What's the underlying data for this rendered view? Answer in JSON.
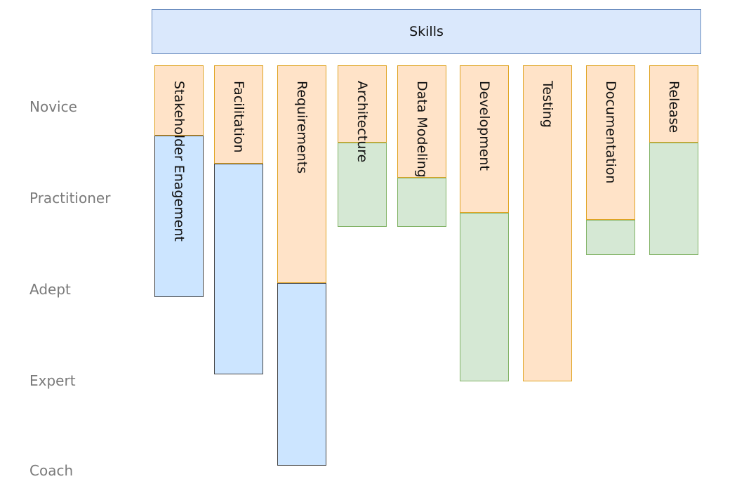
{
  "header": {
    "title": "Skills"
  },
  "levels": [
    "Novice",
    "Practitioner",
    "Adept",
    "Expert",
    "Coach"
  ],
  "skills": [
    {
      "name": "Stakeholder Enagement",
      "color": "#cce5ff"
    },
    {
      "name": "Facilitation",
      "color": "#cce5ff"
    },
    {
      "name": "Requirements",
      "color": "#cce5ff"
    },
    {
      "name": "Architecture",
      "color": "#d5e8d4"
    },
    {
      "name": "Data Modeling",
      "color": "#d5e8d4"
    },
    {
      "name": "Development",
      "color": "#d5e8d4"
    },
    {
      "name": "Testing",
      "color": "#ffe3c8"
    },
    {
      "name": "Documentation",
      "color": "#d5e8d4"
    },
    {
      "name": "Release",
      "color": "#d5e8d4"
    }
  ]
}
